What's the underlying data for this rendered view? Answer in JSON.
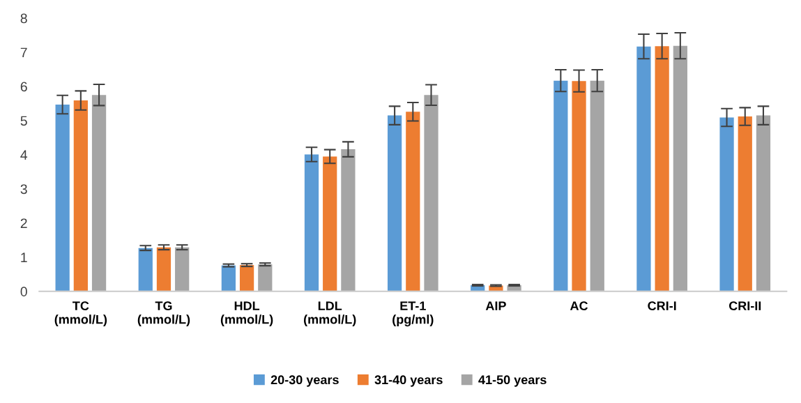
{
  "chart_data": {
    "type": "bar",
    "categories": [
      "TC\n(mmol/L)",
      "TG\n(mmol/L)",
      "HDL\n(mmol/L)",
      "LDL\n(mmol/L)",
      "ET-1\n(pg/ml)",
      "AIP",
      "AC",
      "CRI-I",
      "CRI-II"
    ],
    "series": [
      {
        "name": "20-30 years",
        "color": "#5b9bd5",
        "values": [
          5.47,
          1.27,
          0.76,
          4.01,
          5.15,
          0.18,
          6.17,
          7.17,
          5.09
        ],
        "errors": [
          0.27,
          0.07,
          0.04,
          0.21,
          0.27,
          0.02,
          0.32,
          0.36,
          0.26
        ]
      },
      {
        "name": "31-40 years",
        "color": "#ed7d31",
        "values": [
          5.59,
          1.29,
          0.77,
          3.95,
          5.26,
          0.17,
          6.16,
          7.18,
          5.12
        ],
        "errors": [
          0.28,
          0.07,
          0.04,
          0.2,
          0.27,
          0.02,
          0.32,
          0.37,
          0.26
        ]
      },
      {
        "name": "41-50 years",
        "color": "#a5a5a5",
        "values": [
          5.75,
          1.29,
          0.79,
          4.16,
          5.75,
          0.18,
          6.17,
          7.19,
          5.15
        ],
        "errors": [
          0.31,
          0.07,
          0.04,
          0.22,
          0.3,
          0.02,
          0.32,
          0.38,
          0.27
        ]
      }
    ],
    "ylim": [
      0,
      8
    ],
    "yticks": [
      0,
      1,
      2,
      3,
      4,
      5,
      6,
      7,
      8
    ],
    "grid": false,
    "legend": "bottom"
  }
}
